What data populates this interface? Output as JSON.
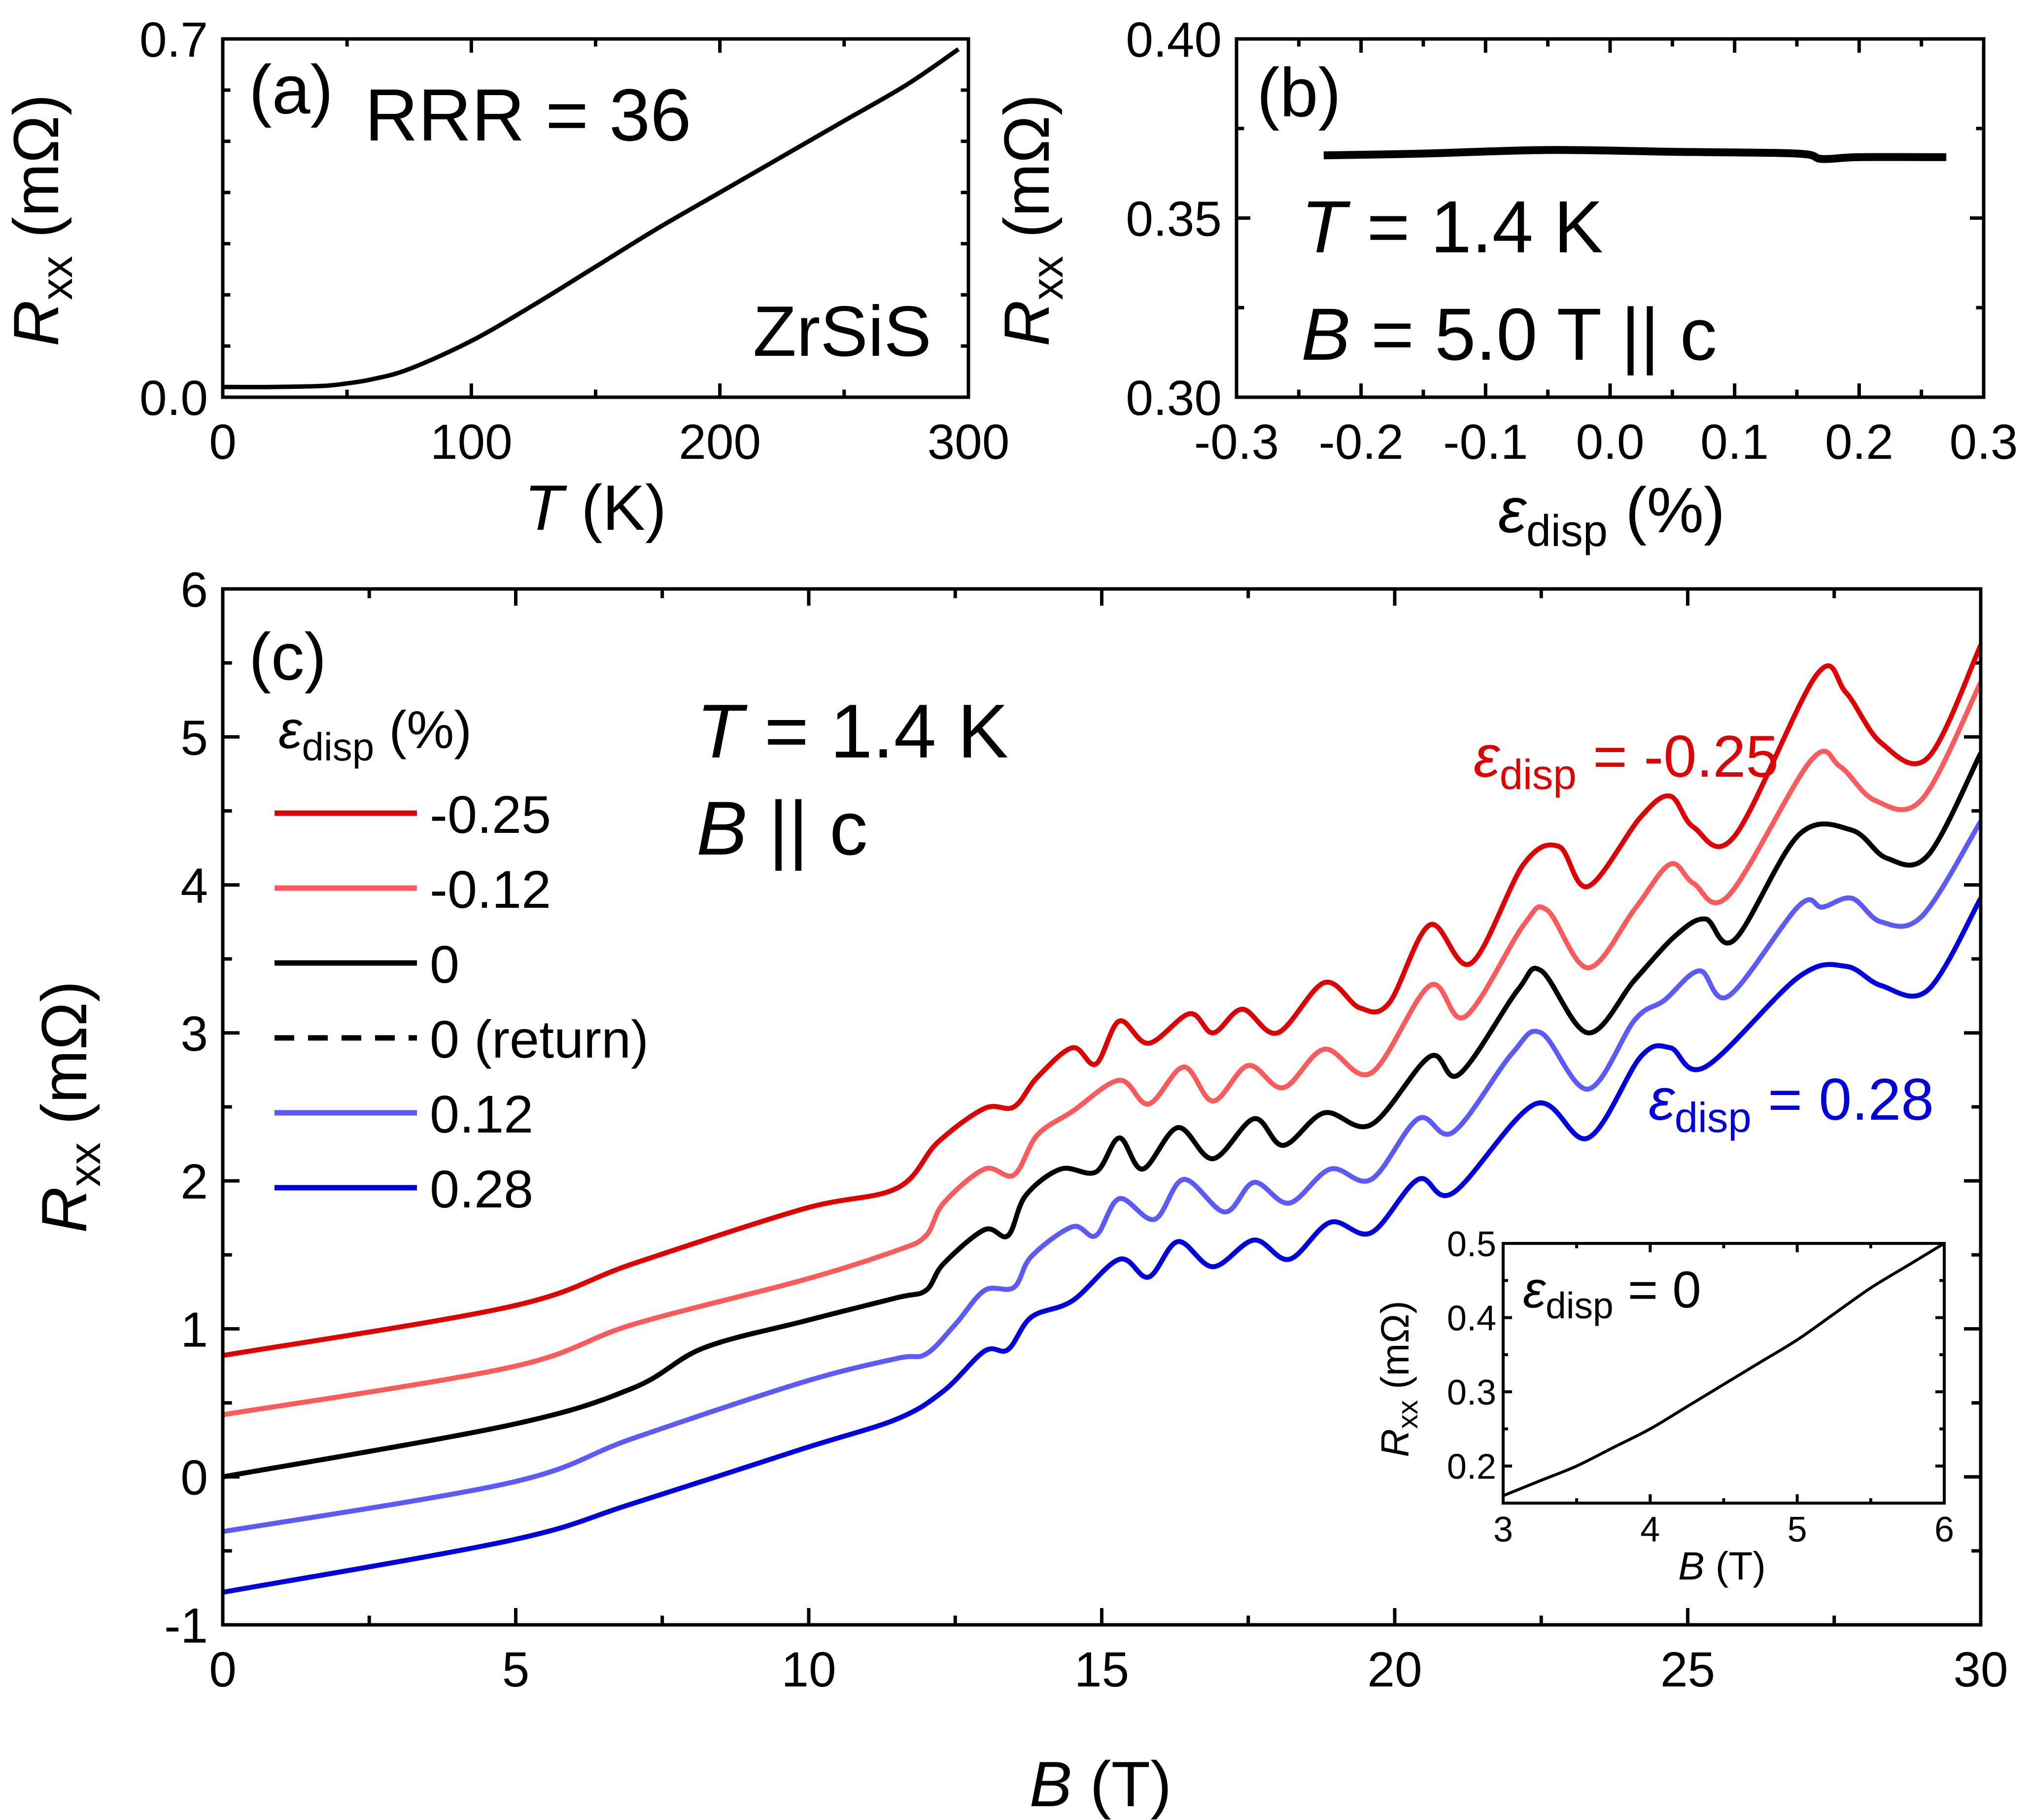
{
  "chart_data": [
    {
      "panel_label": "(a)",
      "type": "line",
      "annotations": [
        "RRR = 36",
        "ZrSiS"
      ],
      "xlabel": {
        "symbol": "T",
        "unit": "(K)"
      },
      "ylabel": {
        "symbol": "R",
        "sub": "xx",
        "unit": "(mΩ)"
      },
      "xlim": [
        0,
        300
      ],
      "ylim": [
        0,
        0.7
      ],
      "xticks": [
        0,
        100,
        200,
        300
      ],
      "xtick_labels": [
        "0",
        "100",
        "200",
        "300"
      ],
      "yticks": [
        0,
        0.7
      ],
      "ytick_labels": [
        "0.0",
        "0.7"
      ],
      "series": [
        {
          "color": "#000000",
          "x": [
            0,
            20,
            40,
            50,
            60,
            75,
            100,
            125,
            150,
            175,
            200,
            225,
            250,
            275,
            296
          ],
          "y": [
            0.02,
            0.02,
            0.022,
            0.027,
            0.035,
            0.055,
            0.11,
            0.18,
            0.255,
            0.33,
            0.4,
            0.47,
            0.54,
            0.61,
            0.68
          ]
        }
      ]
    },
    {
      "panel_label": "(b)",
      "type": "line",
      "annotations": [
        {
          "symbol": "T",
          "text": " = 1.4 K"
        },
        {
          "symbol": "B",
          "text": " = 5.0 T || c"
        }
      ],
      "xlabel": {
        "symbol": "ε",
        "sub": "disp",
        "unit": "(%)"
      },
      "ylabel": {
        "symbol": "R",
        "sub": "xx",
        "unit": "(mΩ)"
      },
      "xlim": [
        -0.3,
        0.3
      ],
      "ylim": [
        0.3,
        0.4
      ],
      "xticks": [
        -0.3,
        -0.2,
        -0.1,
        0,
        0.1,
        0.2,
        0.3
      ],
      "xtick_labels": [
        "-0.3",
        "-0.2",
        "-0.1",
        "0.0",
        "0.1",
        "0.2",
        "0.3"
      ],
      "yticks": [
        0.3,
        0.35,
        0.4
      ],
      "ytick_labels": [
        "0.30",
        "0.35",
        "0.40"
      ],
      "series": [
        {
          "color": "#000000",
          "x": [
            -0.23,
            -0.15,
            -0.05,
            0.05,
            0.15,
            0.17,
            0.2,
            0.27
          ],
          "y": [
            0.3675,
            0.368,
            0.369,
            0.3685,
            0.368,
            0.3665,
            0.367,
            0.367
          ]
        }
      ]
    },
    {
      "panel_label": "(c)",
      "type": "line",
      "annotations": [
        {
          "symbol": "T",
          "text": " = 1.4 K"
        },
        {
          "symbol": "B",
          "text": " || c"
        }
      ],
      "legend_title": {
        "symbol": "ε",
        "sub": "disp",
        "unit": "(%)"
      },
      "curve_labels": [
        {
          "symbol": "ε",
          "sub": "disp",
          "text": " = -0.25",
          "color": "#e00000"
        },
        {
          "symbol": "ε",
          "sub": "disp",
          "text": " = 0.28",
          "color": "#0000e0"
        }
      ],
      "xlabel": {
        "symbol": "B",
        "unit": "(T)"
      },
      "ylabel": {
        "symbol": "R",
        "sub": "xx",
        "unit": "(mΩ)"
      },
      "xlim": [
        0,
        30
      ],
      "ylim": [
        -1,
        6
      ],
      "xticks": [
        0,
        5,
        10,
        15,
        20,
        25,
        30
      ],
      "xtick_labels": [
        "0",
        "5",
        "10",
        "15",
        "20",
        "25",
        "30"
      ],
      "yticks": [
        -1,
        0,
        1,
        2,
        3,
        4,
        5,
        6
      ],
      "ytick_labels": [
        "-1",
        "0",
        "1",
        "2",
        "3",
        "4",
        "5",
        "6"
      ],
      "legend_placement": "top-left",
      "series": [
        {
          "name": "-0.25",
          "color": "#e00000",
          "dash": false,
          "x": [
            0,
            4.9,
            7.0,
            9.9,
            11.5,
            12.2,
            13.0,
            13.5,
            13.9,
            14.5,
            14.9,
            15.3,
            15.8,
            16.5,
            16.9,
            17.4,
            18.0,
            18.8,
            19.4,
            19.9,
            20.6,
            21.3,
            22.2,
            22.8,
            23.3,
            24.2,
            24.7,
            25.1,
            25.8,
            27.2,
            27.7,
            28.3,
            29.1,
            30
          ],
          "y": [
            0.82,
            1.15,
            1.44,
            1.81,
            1.95,
            2.26,
            2.49,
            2.5,
            2.7,
            2.9,
            2.79,
            3.08,
            2.93,
            3.13,
            3.0,
            3.16,
            3.0,
            3.34,
            3.17,
            3.2,
            3.73,
            3.47,
            4.14,
            4.26,
            3.99,
            4.46,
            4.6,
            4.39,
            4.33,
            5.42,
            5.3,
            4.96,
            4.86,
            5.62
          ]
        },
        {
          "name": "-0.12",
          "color": "#ff5a5a",
          "dash": false,
          "x": [
            0,
            4.9,
            7.0,
            9.9,
            11.5,
            12.0,
            12.3,
            13.0,
            13.5,
            13.9,
            14.5,
            15.3,
            15.8,
            16.4,
            16.9,
            17.5,
            18.1,
            18.8,
            19.6,
            20.6,
            21.2,
            22.2,
            22.6,
            23.3,
            24.1,
            24.7,
            25.1,
            25.7,
            27.1,
            27.6,
            28.2,
            29.0,
            30
          ],
          "y": [
            0.42,
            0.74,
            1.03,
            1.33,
            1.53,
            1.63,
            1.85,
            2.08,
            2.04,
            2.31,
            2.47,
            2.68,
            2.52,
            2.77,
            2.54,
            2.78,
            2.63,
            2.89,
            2.73,
            3.32,
            3.11,
            3.73,
            3.83,
            3.44,
            3.84,
            4.14,
            4.01,
            3.93,
            4.84,
            4.8,
            4.57,
            4.58,
            5.37
          ]
        },
        {
          "name": "0",
          "color": "#000000",
          "dash": false,
          "x": [
            0,
            4.9,
            7.0,
            8.2,
            9.9,
            11.5,
            12.0,
            12.3,
            13.0,
            13.4,
            13.7,
            14.3,
            14.9,
            15.3,
            15.7,
            16.3,
            16.9,
            17.6,
            18.1,
            18.8,
            19.6,
            20.6,
            21.1,
            22.1,
            22.5,
            23.3,
            24.1,
            24.8,
            25.3,
            25.8,
            26.9,
            27.8,
            28.4,
            29.1,
            30
          ],
          "y": [
            0.0,
            0.35,
            0.6,
            0.87,
            1.05,
            1.21,
            1.26,
            1.44,
            1.67,
            1.63,
            1.9,
            2.08,
            2.06,
            2.29,
            2.08,
            2.36,
            2.15,
            2.42,
            2.24,
            2.46,
            2.38,
            2.84,
            2.72,
            3.29,
            3.42,
            3.0,
            3.36,
            3.66,
            3.77,
            3.63,
            4.34,
            4.37,
            4.18,
            4.2,
            4.89
          ]
        },
        {
          "name": "0 (return)",
          "color": "#000000",
          "dash": true,
          "x": [
            0,
            4.9,
            7.0,
            8.2,
            9.9,
            11.5,
            12.0,
            12.3,
            13.0,
            13.4,
            13.7,
            14.3,
            14.9,
            15.3,
            15.7,
            16.3,
            16.9,
            17.6,
            18.1,
            18.8,
            19.6,
            20.6,
            21.1,
            22.1,
            22.5,
            23.3,
            24.1,
            24.8,
            25.3,
            25.8,
            26.9,
            27.8,
            28.4,
            29.1,
            30
          ],
          "y": [
            0.0,
            0.35,
            0.6,
            0.87,
            1.05,
            1.21,
            1.26,
            1.44,
            1.67,
            1.63,
            1.9,
            2.08,
            2.06,
            2.29,
            2.08,
            2.36,
            2.15,
            2.42,
            2.24,
            2.46,
            2.38,
            2.84,
            2.72,
            3.29,
            3.42,
            3.0,
            3.36,
            3.66,
            3.77,
            3.63,
            4.34,
            4.37,
            4.18,
            4.2,
            4.89
          ]
        },
        {
          "name": "0.12",
          "color": "#5a5aff",
          "dash": false,
          "x": [
            0,
            4.9,
            7.0,
            9.9,
            11.5,
            12.0,
            12.5,
            13.0,
            13.5,
            13.8,
            14.5,
            14.9,
            15.3,
            15.9,
            16.4,
            17.1,
            17.6,
            18.2,
            18.9,
            19.6,
            20.4,
            21.0,
            22.0,
            22.5,
            23.3,
            24.1,
            24.6,
            25.2,
            25.7,
            26.9,
            27.3,
            27.8,
            28.3,
            29.0,
            30
          ],
          "y": [
            -0.37,
            -0.04,
            0.26,
            0.64,
            0.8,
            0.83,
            1.03,
            1.26,
            1.28,
            1.49,
            1.69,
            1.63,
            1.88,
            1.74,
            2.01,
            1.79,
            1.99,
            1.85,
            2.08,
            2.01,
            2.42,
            2.33,
            2.86,
            3.0,
            2.62,
            3.09,
            3.22,
            3.42,
            3.25,
            3.86,
            3.85,
            3.91,
            3.75,
            3.79,
            4.43
          ]
        },
        {
          "name": "0.28",
          "color": "#0000e0",
          "dash": false,
          "x": [
            0,
            4.9,
            7.0,
            9.9,
            11.5,
            12.3,
            13.0,
            13.4,
            13.8,
            14.5,
            15.3,
            15.8,
            16.3,
            16.9,
            17.6,
            18.2,
            18.9,
            19.6,
            20.4,
            21.0,
            22.4,
            23.3,
            24.2,
            24.7,
            25.3,
            26.9,
            27.7,
            28.3,
            29.1,
            30
          ],
          "y": [
            -0.78,
            -0.43,
            -0.18,
            0.19,
            0.39,
            0.58,
            0.85,
            0.86,
            1.08,
            1.19,
            1.47,
            1.35,
            1.59,
            1.42,
            1.6,
            1.47,
            1.72,
            1.65,
            2.01,
            1.92,
            2.52,
            2.29,
            2.84,
            2.9,
            2.77,
            3.38,
            3.45,
            3.32,
            3.29,
            3.91
          ]
        }
      ]
    },
    {
      "panel_label": "",
      "inset_of": "(c)",
      "type": "line",
      "annotation": {
        "symbol": "ε",
        "sub": "disp",
        "text": " = 0"
      },
      "xlabel": {
        "symbol": "B",
        "unit": "(T)"
      },
      "ylabel": {
        "symbol": "R",
        "sub": "xx",
        "unit": "(mΩ)"
      },
      "xlim": [
        3,
        6
      ],
      "ylim": [
        0.15,
        0.5
      ],
      "xticks": [
        3,
        4,
        5,
        6
      ],
      "xtick_labels": [
        "3",
        "4",
        "5",
        "6"
      ],
      "yticks": [
        0.2,
        0.3,
        0.4,
        0.5
      ],
      "ytick_labels": [
        "0.2",
        "0.3",
        "0.4",
        "0.5"
      ],
      "series": [
        {
          "color": "#000000",
          "x": [
            3,
            3.25,
            3.5,
            3.75,
            4,
            4.25,
            4.5,
            4.75,
            5,
            5.25,
            5.5,
            5.75,
            6
          ],
          "y": [
            0.16,
            0.18,
            0.2,
            0.225,
            0.25,
            0.28,
            0.31,
            0.34,
            0.37,
            0.405,
            0.44,
            0.47,
            0.5
          ]
        }
      ]
    }
  ]
}
